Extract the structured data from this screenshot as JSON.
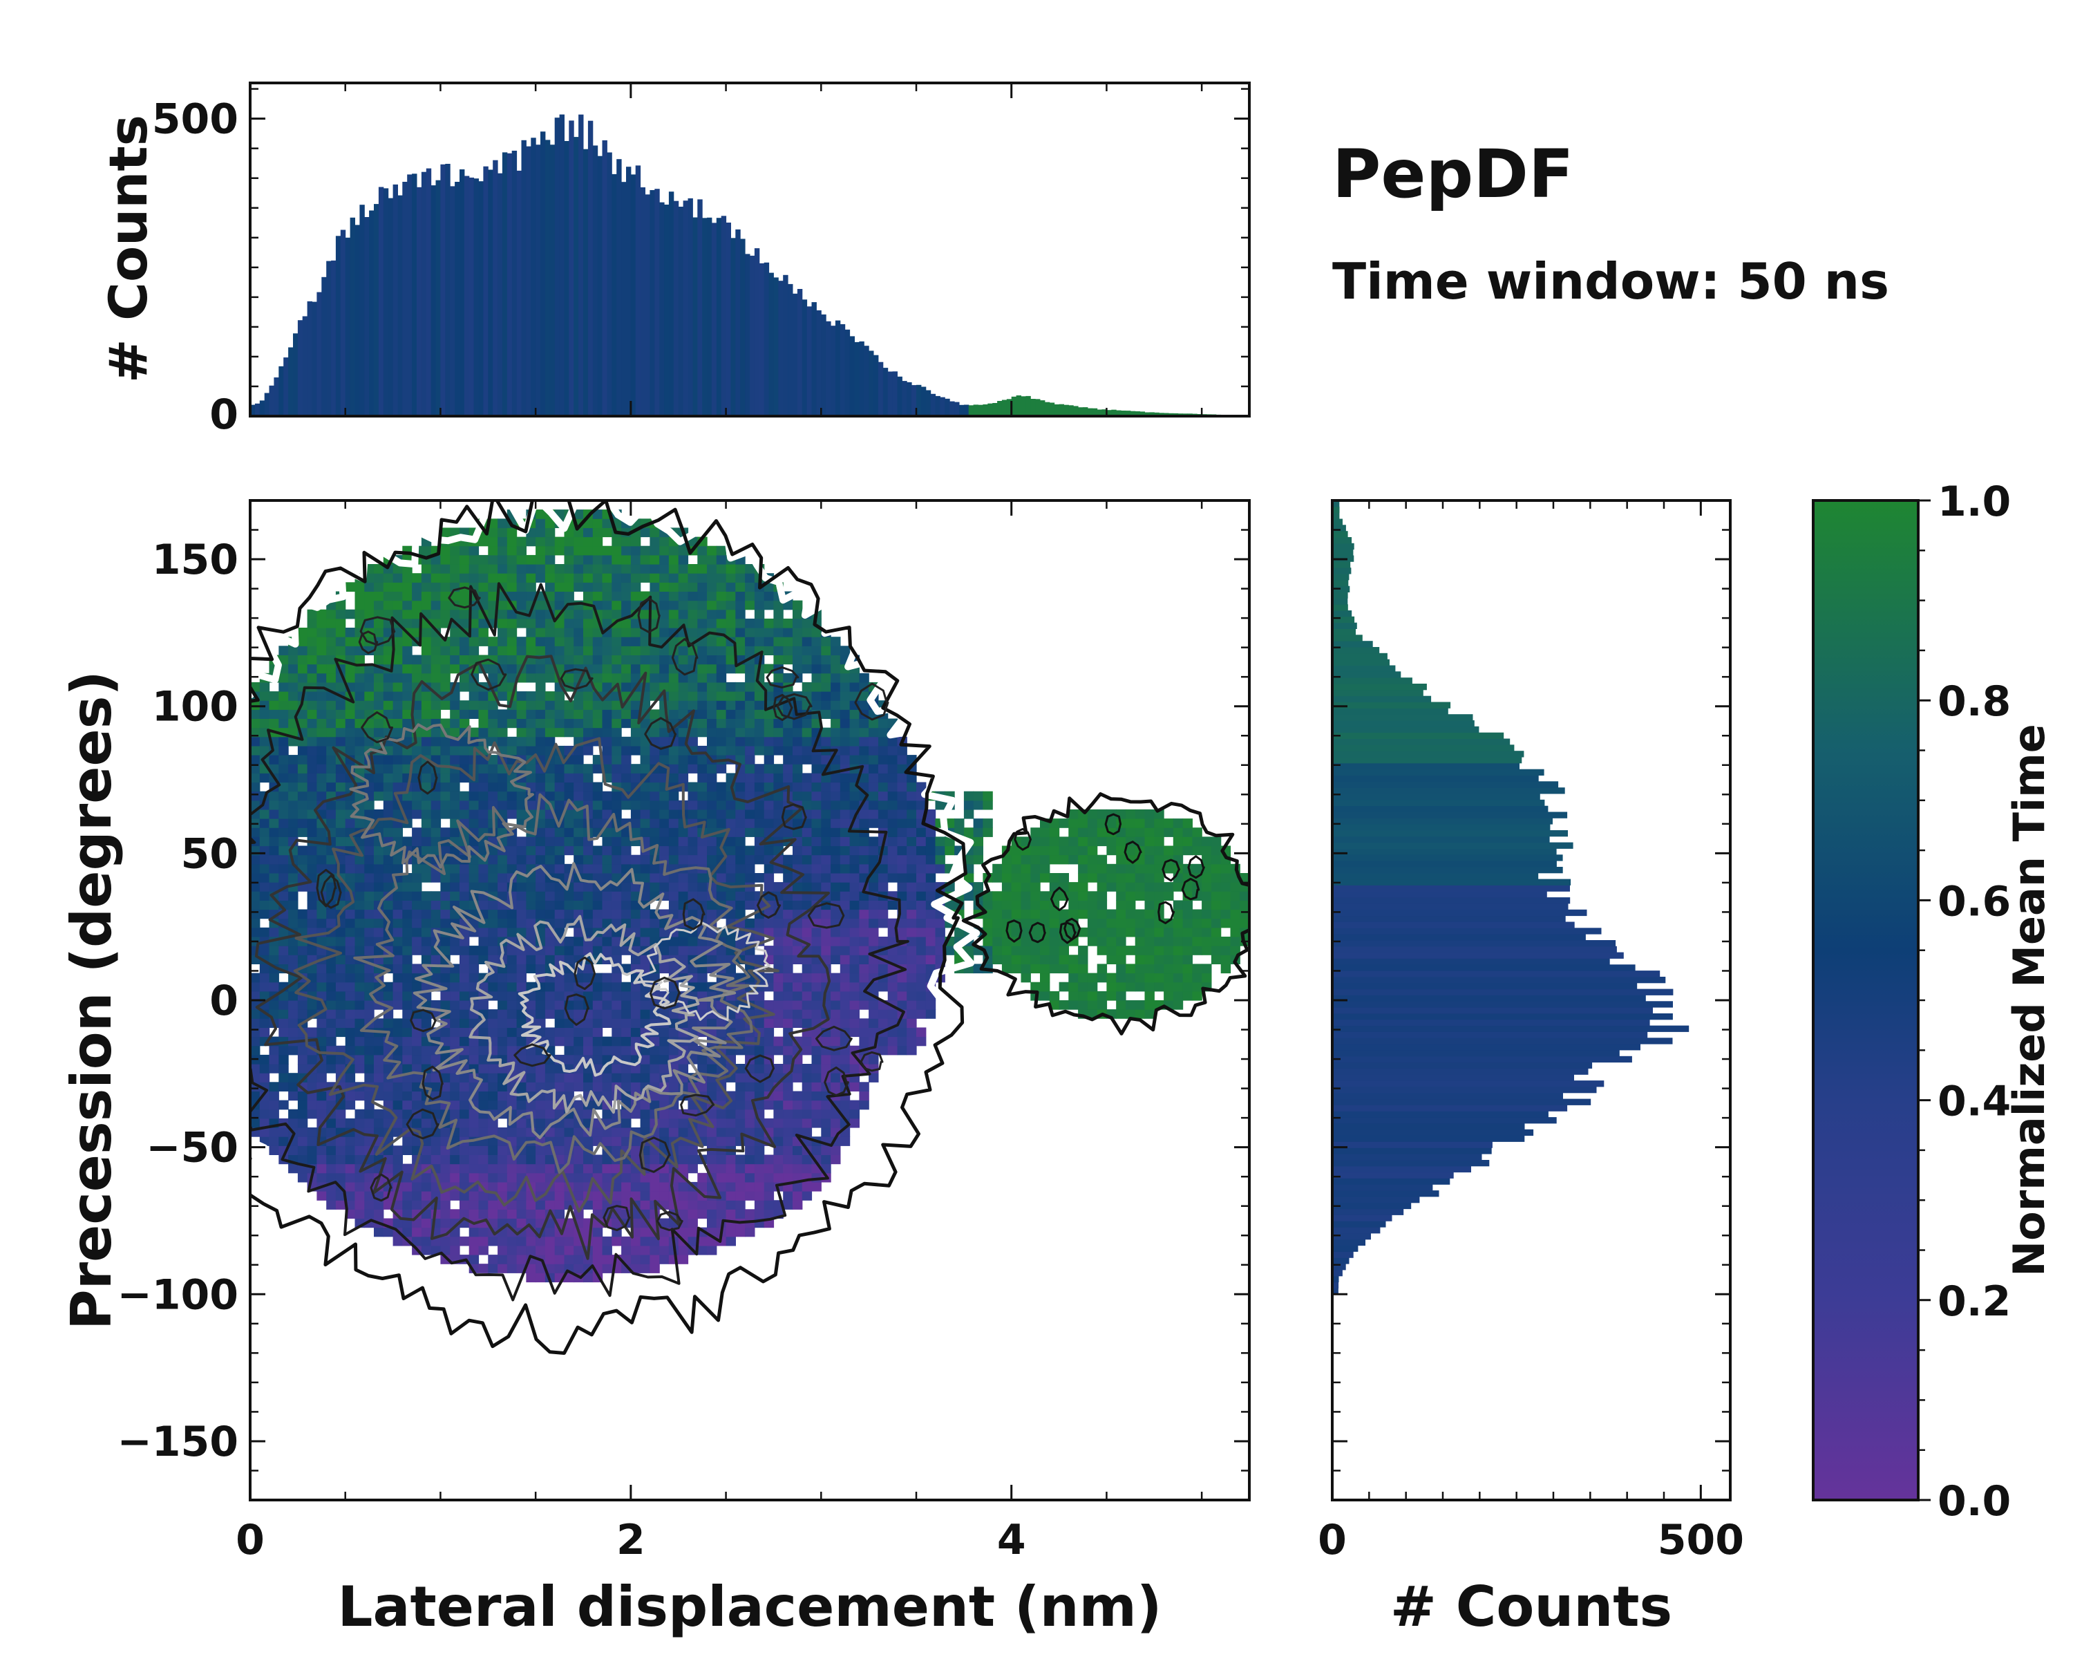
{
  "chart_data": {
    "type": "heatmap",
    "title": "PepDF",
    "subtitle": "Time window: 50 ns",
    "main": {
      "xlabel": "Lateral displacement (nm)",
      "ylabel": "Precession (degrees)",
      "xlim": [
        0,
        5.25
      ],
      "ylim": [
        -170,
        170
      ],
      "x_ticks": [
        0,
        2,
        4
      ],
      "x_tick_labels": [
        "0",
        "2",
        "4"
      ],
      "y_ticks": [
        150,
        100,
        50,
        0,
        -50,
        -100,
        -150
      ],
      "y_tick_labels": [
        "150",
        "100",
        "50",
        "0",
        "−50",
        "−100",
        "−150"
      ],
      "description_regions": [
        {
          "name": "main-cluster",
          "x_range": [
            0,
            3.8
          ],
          "y_range": [
            -100,
            165
          ],
          "mean_time_core": 0.45
        },
        {
          "name": "green-tail",
          "x_range": [
            3.8,
            5.2
          ],
          "y_range": [
            -10,
            70
          ],
          "mean_time_core": 0.97
        }
      ]
    },
    "top_histogram": {
      "ylabel": "# Counts",
      "ylim": [
        0,
        560
      ],
      "y_ticks": [
        0,
        500
      ],
      "y_tick_labels": [
        "0",
        "500"
      ],
      "x": [
        0.05,
        0.15,
        0.25,
        0.35,
        0.45,
        0.55,
        0.65,
        0.75,
        0.85,
        0.95,
        1.05,
        1.15,
        1.25,
        1.35,
        1.45,
        1.55,
        1.65,
        1.75,
        1.85,
        1.95,
        2.05,
        2.15,
        2.25,
        2.35,
        2.45,
        2.55,
        2.65,
        2.75,
        2.85,
        2.95,
        3.05,
        3.15,
        3.25,
        3.35,
        3.45,
        3.55,
        3.65,
        3.75,
        3.85,
        3.95,
        4.05,
        4.15,
        4.25,
        4.35,
        4.45,
        4.55,
        4.65,
        4.75,
        4.85,
        4.95,
        5.05,
        5.15
      ],
      "values": [
        20,
        70,
        150,
        210,
        280,
        330,
        360,
        380,
        400,
        410,
        400,
        405,
        420,
        425,
        440,
        470,
        490,
        480,
        450,
        420,
        400,
        380,
        370,
        350,
        330,
        300,
        280,
        250,
        220,
        190,
        160,
        140,
        110,
        80,
        60,
        45,
        30,
        18,
        20,
        25,
        35,
        28,
        20,
        16,
        12,
        10,
        8,
        6,
        5,
        4,
        3,
        2
      ]
    },
    "right_histogram": {
      "xlabel": "# Counts",
      "xlim": [
        0,
        540
      ],
      "x_ticks": [
        0,
        500
      ],
      "x_tick_labels": [
        "0",
        "500"
      ],
      "y": [
        165,
        155,
        145,
        135,
        125,
        115,
        105,
        95,
        85,
        75,
        65,
        55,
        45,
        35,
        25,
        15,
        5,
        -5,
        -15,
        -25,
        -35,
        -45,
        -55,
        -65,
        -75,
        -85,
        -95
      ],
      "values": [
        10,
        30,
        25,
        20,
        35,
        80,
        130,
        190,
        250,
        290,
        310,
        320,
        290,
        310,
        340,
        400,
        440,
        470,
        430,
        360,
        330,
        260,
        200,
        140,
        80,
        30,
        8
      ]
    },
    "colorbar": {
      "label": "Normalized Mean Time",
      "range": [
        0,
        1
      ],
      "ticks": [
        0.0,
        0.2,
        0.4,
        0.6,
        0.8,
        1.0
      ],
      "tick_labels": [
        "0.0",
        "0.2",
        "0.4",
        "0.6",
        "0.8",
        "1.0"
      ],
      "colors": [
        "#65339b",
        "#3d3c96",
        "#273f8a",
        "#0e3f76",
        "#165f6d",
        "#1f8632"
      ]
    }
  }
}
